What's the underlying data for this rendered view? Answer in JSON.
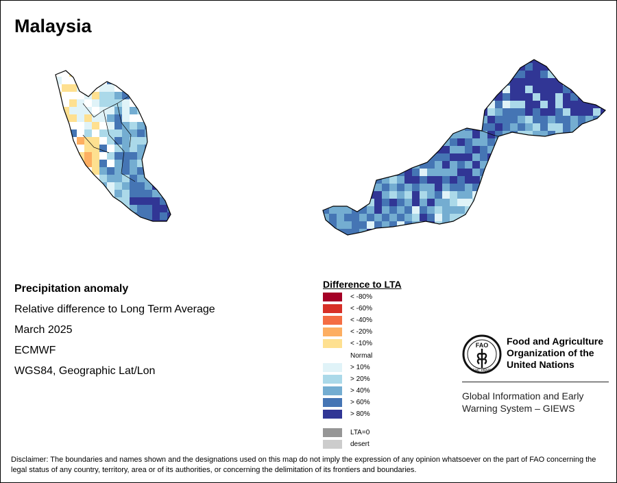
{
  "title": "Malaysia",
  "info": {
    "heading": "Precipitation anomaly",
    "subtitle": "Relative difference to Long Term Average",
    "period": "March 2025",
    "source": "ECMWF",
    "projection": "WGS84, Geographic Lat/Lon"
  },
  "legend": {
    "title": "Difference to LTA",
    "items": [
      {
        "label": "< -80%",
        "color": "#a50026"
      },
      {
        "label": "< -60%",
        "color": "#d73027"
      },
      {
        "label": "< -40%",
        "color": "#f46d43"
      },
      {
        "label": "< -20%",
        "color": "#fdae61"
      },
      {
        "label": "< -10%",
        "color": "#fee090"
      },
      {
        "label": "Normal",
        "color": "#ffffff"
      },
      {
        "label": "> 10%",
        "color": "#e0f3f8"
      },
      {
        "label": "> 20%",
        "color": "#abd9e9"
      },
      {
        "label": "> 40%",
        "color": "#74add1"
      },
      {
        "label": "> 60%",
        "color": "#4575b4"
      },
      {
        "label": "> 80%",
        "color": "#313695"
      },
      {
        "label": "LTA=0",
        "color": "#969696"
      },
      {
        "label": "desert",
        "color": "#cccccc"
      }
    ]
  },
  "fao": {
    "name_lines": [
      "Food and Agriculture",
      "Organization of the",
      "United Nations"
    ],
    "logo_text": "FAO",
    "logo_motto": "FIAT PANIS",
    "program_lines": [
      "Global Information and Early",
      "Warning System – GIEWS"
    ]
  },
  "disclaimer": "Disclaimer: The boundaries and names shown and the designations used on this map do not imply the expression of any opinion whatsoever on the part of FAO concerning the legal status of any country, territory, area or of its authorities, or concerning the delimitation of its frontiers and boundaries."
}
